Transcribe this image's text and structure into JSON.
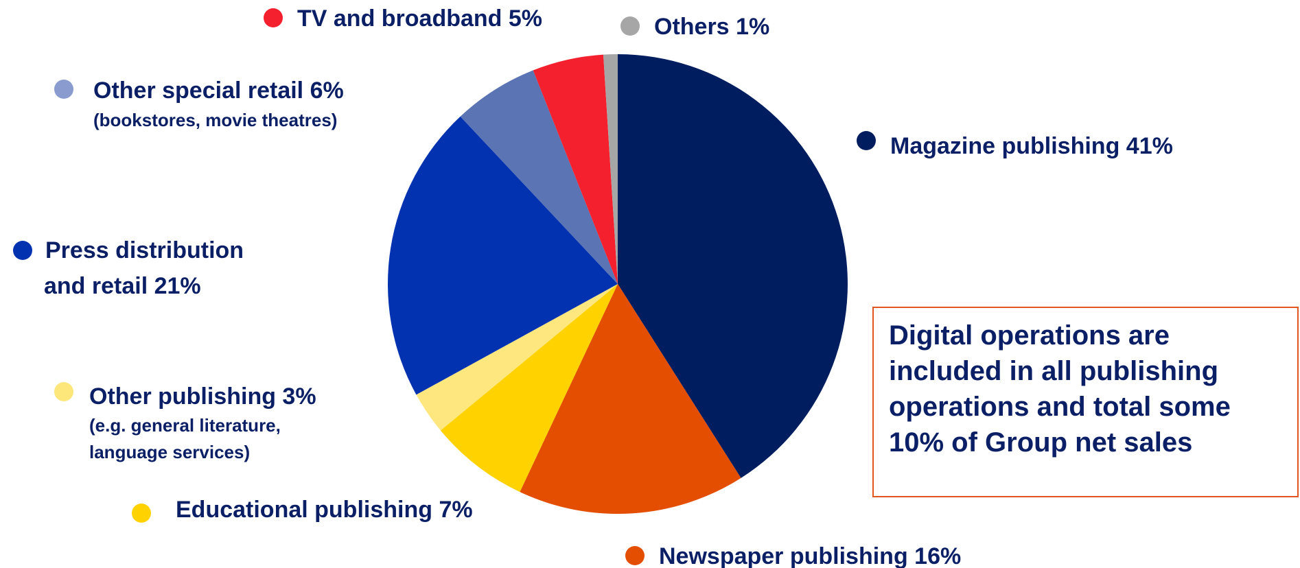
{
  "chart_data": {
    "type": "pie",
    "title": "",
    "start_angle_deg": 0,
    "direction": "clockwise",
    "slices": [
      {
        "label": "Magazine publishing",
        "value": 41,
        "color": "#001e5f",
        "sub_label": ""
      },
      {
        "label": "Newspaper publishing",
        "value": 16,
        "color": "#e34e00",
        "sub_label": ""
      },
      {
        "label": "Educational publishing",
        "value": 7,
        "color": "#ffd200",
        "sub_label": ""
      },
      {
        "label": "Other publishing",
        "value": 3,
        "color": "#ffe780",
        "sub_label": "(e.g. general literature, language services)"
      },
      {
        "label": "Press distribution and retail",
        "value": 21,
        "color": "#0232b0",
        "sub_label": ""
      },
      {
        "label": "Other special retail",
        "value": 6,
        "color": "#5a74b4",
        "sub_label": "(bookstores, movie theatres)"
      },
      {
        "label": "TV and broadband",
        "value": 5,
        "color": "#f5202e",
        "sub_label": ""
      },
      {
        "label": "Others",
        "value": 1,
        "color": "#a6a6a6",
        "sub_label": ""
      }
    ],
    "legend_dot_colors": {
      "magazine": "#001e5f",
      "newspaper": "#e34e00",
      "educational": "#ffd200",
      "other_publishing": "#fde77a",
      "press": "#0232b0",
      "other_special_retail": "#8a9bcf",
      "tv": "#f5202e",
      "others": "#a6a6a6"
    }
  },
  "labels": {
    "magazine": "Magazine publishing 41%",
    "newspaper": "Newspaper publishing 16%",
    "educational": "Educational publishing 7%",
    "other_publishing": "Other publishing 3%",
    "other_publishing_sub_1": "(e.g. general literature,",
    "other_publishing_sub_2": "language services)",
    "press_1": "Press distribution",
    "press_2": "and retail 21%",
    "other_special_retail": "Other special retail 6%",
    "other_special_retail_sub": "(bookstores, movie theatres)",
    "tv": "TV and broadband 5%",
    "others": "Others 1%"
  },
  "note": {
    "text": "Digital operations are included in all publishing operations and total some 10% of Group net sales",
    "border_color": "#e1561f"
  }
}
